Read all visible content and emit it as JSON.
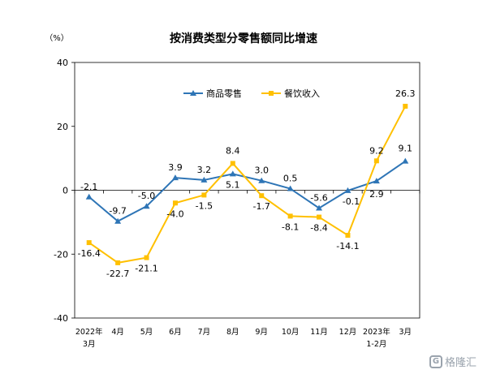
{
  "chart_data": {
    "type": "line",
    "title": "按消费类型分零售额同比增速",
    "ylabel": "（%）",
    "ylim": [
      -40,
      40
    ],
    "yticks": [
      -40,
      -20,
      0,
      20,
      40
    ],
    "categories": [
      "2022年3月",
      "4月",
      "5月",
      "6月",
      "7月",
      "8月",
      "9月",
      "10月",
      "11月",
      "12月",
      "2023年1-2月",
      "3月"
    ],
    "category_lines": [
      [
        "2022年",
        "3月"
      ],
      [
        "4月"
      ],
      [
        "5月"
      ],
      [
        "6月"
      ],
      [
        "7月"
      ],
      [
        "8月"
      ],
      [
        "9月"
      ],
      [
        "10月"
      ],
      [
        "11月"
      ],
      [
        "12月"
      ],
      [
        "2023年",
        "1-2月"
      ],
      [
        "3月"
      ]
    ],
    "legend_position": "top",
    "series": [
      {
        "name": "商品零售",
        "color": "#2e75b6",
        "marker": "triangle",
        "values": [
          -2.1,
          -9.7,
          -5.0,
          3.9,
          3.2,
          5.1,
          3.0,
          0.5,
          -5.6,
          -0.1,
          2.9,
          9.1
        ],
        "labels": [
          "-2.1",
          "-9.7",
          "-5.0",
          "3.9",
          "3.2",
          "5.1",
          "3.0",
          "0.5",
          "-5.6",
          "-0.1",
          "2.9",
          "9.1"
        ]
      },
      {
        "name": "餐饮收入",
        "color": "#ffc000",
        "marker": "square",
        "values": [
          -16.4,
          -22.7,
          -21.1,
          -4.0,
          -1.5,
          8.4,
          -1.7,
          -8.1,
          -8.4,
          -14.1,
          9.2,
          26.3
        ],
        "labels": [
          "-16.4",
          "-22.7",
          "-21.1",
          "-4.0",
          "-1.5",
          "8.4",
          "-1.7",
          "-8.1",
          "-8.4",
          "-14.1",
          "9.2",
          "26.3"
        ]
      }
    ]
  },
  "watermark": {
    "text": "格隆汇",
    "icon": "gelonghui-logo-icon"
  }
}
